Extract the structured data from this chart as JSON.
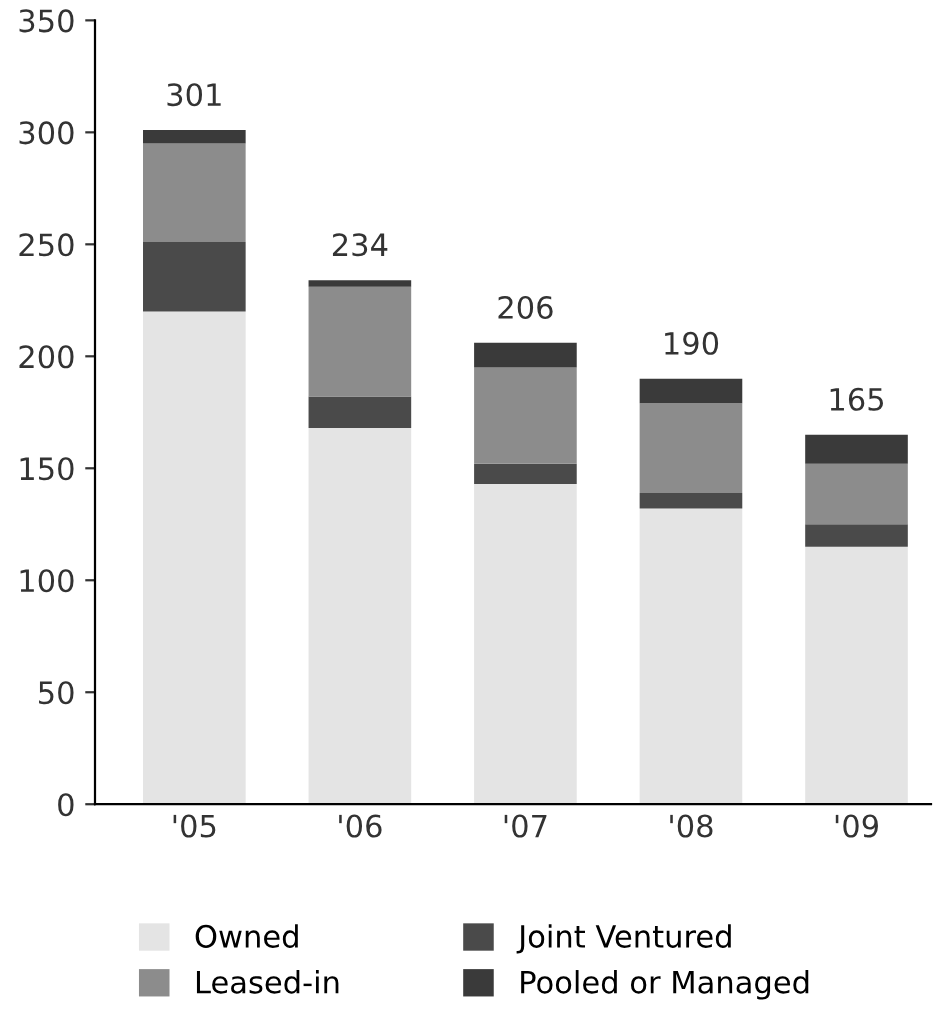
{
  "chart_data": {
    "type": "bar",
    "stacked": true,
    "categories": [
      "'05",
      "'06",
      "'07",
      "'08",
      "'09"
    ],
    "series": [
      {
        "name": "Owned",
        "color": "#e4e4e4",
        "values": [
          220,
          168,
          143,
          132,
          115
        ]
      },
      {
        "name": "Joint Ventured",
        "color": "#4a4a4a",
        "values": [
          31,
          14,
          9,
          7,
          10
        ]
      },
      {
        "name": "Leased-in",
        "color": "#8c8c8c",
        "values": [
          44,
          49,
          43,
          40,
          27
        ]
      },
      {
        "name": "Pooled or Managed",
        "color": "#3a3a3a",
        "values": [
          6,
          3,
          11,
          11,
          13
        ]
      }
    ],
    "totals": [
      "301",
      "234",
      "206",
      "190",
      "165"
    ],
    "ylim": [
      0,
      350
    ],
    "yticks": [
      0,
      50,
      100,
      150,
      200,
      250,
      300,
      350
    ],
    "grid": false,
    "legend": "bottom"
  }
}
